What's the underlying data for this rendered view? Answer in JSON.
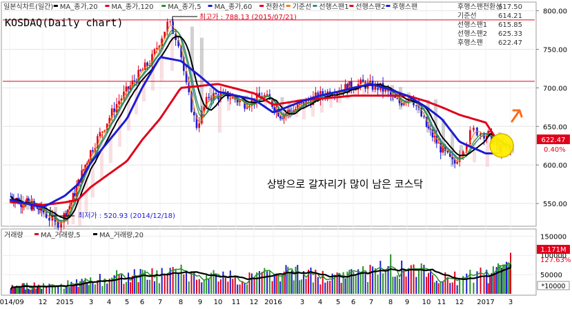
{
  "chart_data": {
    "type": "candlestick",
    "title": "KOSDAQ(Daily chart)",
    "annotation": "상방으로 갈자리가 많이 남은 코스닥",
    "legend": [
      {
        "label": "일본식차트(일간)",
        "color": "#e0001b"
      },
      {
        "label": "MA_종가,20",
        "color": "#000000"
      },
      {
        "label": "MA_종가,120",
        "color": "#e0001b"
      },
      {
        "label": "MA_종가,5",
        "color": "#2a8f2a"
      },
      {
        "label": "MA_종가,60",
        "color": "#1b1bd6"
      },
      {
        "label": "전환선",
        "color": "#e0001b"
      },
      {
        "label": "기준선",
        "color": "#ff7a00"
      },
      {
        "label": "선행스팬1",
        "color": "#3a8a8a"
      },
      {
        "label": "선행스팬2",
        "color": "#e0001b"
      },
      {
        "label": "후행스팬",
        "color": "#1b1bd6"
      }
    ],
    "info_box": [
      {
        "label": "후행스팬전환선",
        "value": "617.50"
      },
      {
        "label": "기준선",
        "value": "614.21"
      },
      {
        "label": "선행스팬1",
        "value": "615.85"
      },
      {
        "label": "선행스팬2",
        "value": "625.33"
      },
      {
        "label": "후행스팬",
        "value": "622.47"
      }
    ],
    "y_ticks": [
      550,
      600,
      650,
      700,
      750,
      800
    ],
    "y_tick_labels": [
      "550.00",
      "600.00",
      "650.00",
      "700.00",
      "750.00",
      "800.00"
    ],
    "ylim": [
      525,
      805
    ],
    "price_box": {
      "value": "622.47",
      "change": "0.40%"
    },
    "reference_lines": [
      788.13,
      708.5
    ],
    "max_label": "최고가 : 788.13 (2015/07/21)",
    "min_label": "최저가 : 520.93 (2014/12/18)",
    "x_tick_labels": [
      "2014/09",
      "12",
      "2015",
      "3",
      "4",
      "5",
      "6",
      "7",
      "8",
      "9",
      "10",
      "11",
      "12",
      "2016",
      "3",
      "4",
      "5",
      "6",
      "7",
      "8",
      "9",
      "10",
      "11",
      "12",
      "2017",
      "3"
    ],
    "series": [
      {
        "name": "MA_종가,120",
        "color": "#e0001b",
        "x": [
          "2014/09",
          "2014/12",
          "2015/02",
          "2015/05",
          "2015/07",
          "2015/08",
          "2015/10",
          "2015/12",
          "2016/01",
          "2016/03",
          "2016/06",
          "2016/09",
          "2016/11",
          "2017/01",
          "2017/02"
        ],
        "values": [
          552,
          548,
          555,
          605,
          660,
          700,
          705,
          693,
          678,
          684,
          690,
          690,
          675,
          655,
          630
        ]
      },
      {
        "name": "MA_종가,60",
        "color": "#1b1bd6",
        "x": [
          "2014/09",
          "2014/12",
          "2015/02",
          "2015/05",
          "2015/07",
          "2015/08",
          "2015/10",
          "2015/12",
          "2016/01",
          "2016/04",
          "2016/07",
          "2016/09",
          "2016/11",
          "2016/12",
          "2017/01",
          "2017/02"
        ],
        "values": [
          555,
          545,
          575,
          660,
          740,
          735,
          695,
          685,
          668,
          690,
          705,
          690,
          660,
          630,
          615,
          615
        ]
      }
    ],
    "volume": {
      "title": "거래량",
      "legend": [
        {
          "label": "MA_거래량,5",
          "color": "#e0001b"
        },
        {
          "label": "MA_거래량,20",
          "color": "#000000"
        }
      ],
      "y_ticks": [
        50000,
        100000,
        150000
      ],
      "y_tick_labels": [
        "50000",
        "100000",
        "150000"
      ],
      "ylim": [
        0,
        165000
      ],
      "unit_label": "*10000",
      "last_value": "1.171M",
      "ratio": "127.63%",
      "ma20_values": [
        18000,
        20000,
        23000,
        30000,
        45000,
        48000,
        52000,
        40000,
        45000,
        55000,
        42000,
        45000,
        70000,
        52000,
        40000,
        52000,
        75000
      ]
    }
  }
}
